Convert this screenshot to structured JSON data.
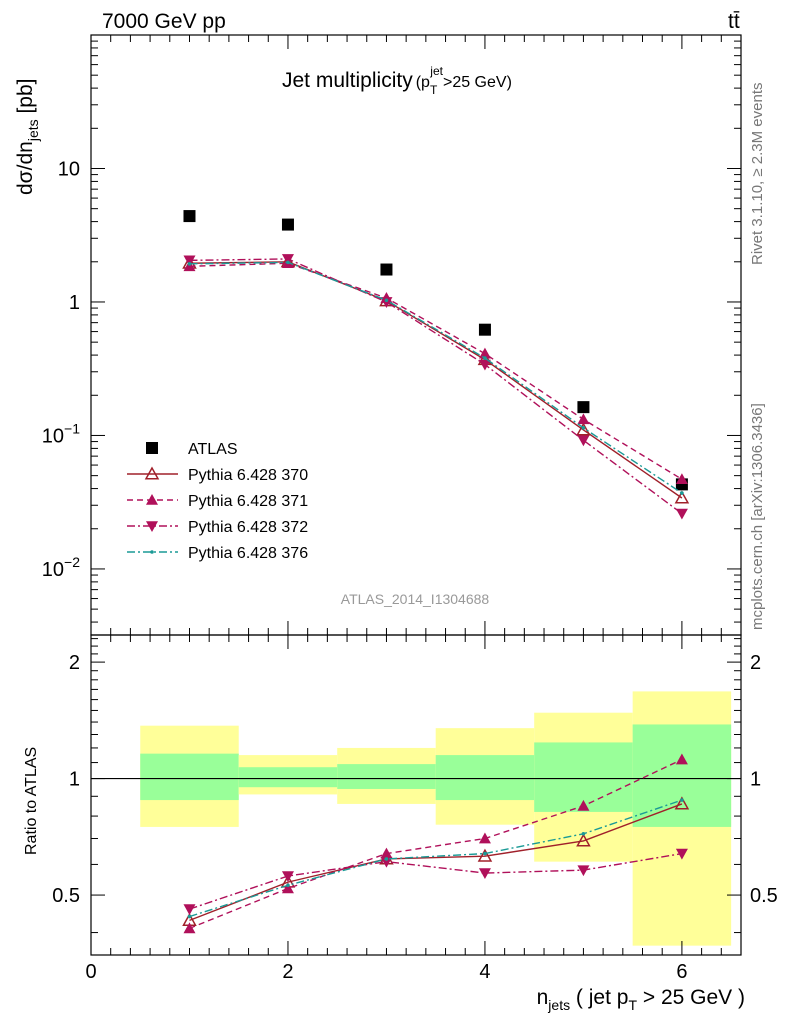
{
  "header": {
    "energy_label": "7000 GeV pp",
    "process_label": "tt̄",
    "side_rivet": "Rivet 3.1.10, ≥ 2.3M events",
    "side_mcplots": "mcplots.cern.ch [arXiv:1306.3436]",
    "analysis_id": "ATLAS_2014_I1304688"
  },
  "chart_data": [
    {
      "type": "scatter",
      "panel": "main",
      "title": "Jet multiplicity (p_T^jet > 25 GeV)",
      "title_main": "Jet multiplicity",
      "title_sub_p": "(p",
      "title_sub_T": "T",
      "title_sup_jet": "jet",
      "title_sub_rest": ">25 GeV)",
      "ylabel_main": "dσ/dn",
      "ylabel_sub": "jets",
      "ylabel_unit": " [pb]",
      "yscale": "log",
      "ylim": [
        0.0032,
        100
      ],
      "xlim": [
        0,
        6.6
      ],
      "y_tick_labels": [
        {
          "value": 10,
          "base": "10",
          "exp": ""
        },
        {
          "value": 1,
          "base": "1",
          "exp": ""
        },
        {
          "value": 0.1,
          "base": "10",
          "exp": "−1"
        },
        {
          "value": 0.01,
          "base": "10",
          "exp": "−2"
        }
      ],
      "x": [
        1,
        2,
        3,
        4,
        5,
        6
      ],
      "series": [
        {
          "name": "ATLAS",
          "values": [
            4.4,
            3.8,
            1.75,
            0.62,
            0.163,
            0.043
          ],
          "color": "#000000",
          "marker": "square",
          "line": "none"
        },
        {
          "name": "Pythia 6.428 370",
          "values": [
            1.95,
            2.0,
            1.02,
            0.37,
            0.11,
            0.034
          ],
          "color": "#a0202a",
          "marker": "triangle-open",
          "line": "solid"
        },
        {
          "name": "Pythia 6.428 371",
          "values": [
            1.85,
            1.95,
            1.07,
            0.41,
            0.132,
            0.047
          ],
          "color": "#b0105a",
          "marker": "triangle-up",
          "line": "dashed"
        },
        {
          "name": "Pythia 6.428 372",
          "values": [
            2.05,
            2.1,
            1.0,
            0.34,
            0.092,
            0.026
          ],
          "color": "#b0105a",
          "marker": "triangle-down",
          "line": "dashdot"
        },
        {
          "name": "Pythia 6.428 376",
          "values": [
            1.93,
            1.98,
            1.03,
            0.38,
            0.114,
            0.037
          ],
          "color": "#1a9a96",
          "marker": "dot",
          "line": "dashdot"
        }
      ]
    },
    {
      "type": "line",
      "panel": "ratio",
      "ylabel": "Ratio to ATLAS",
      "ylim": [
        0.35,
        2.35
      ],
      "y_tick_labels": [
        "0.5",
        "1",
        "2"
      ],
      "y_tick_values": [
        0.5,
        1,
        2
      ],
      "xlabel_n": "n",
      "xlabel_sub": "jets",
      "xlabel_mid": " ( jet p",
      "xlabel_subT": "T",
      "xlabel_end": " > 25 GeV )",
      "x_tick_labels": [
        "0",
        "2",
        "4",
        "6"
      ],
      "x_tick_values": [
        0,
        2,
        4,
        6
      ],
      "xlim": [
        0,
        6.6
      ],
      "bands": [
        {
          "x0": 0.5,
          "x1": 1.5,
          "yellow": [
            0.75,
            1.37
          ],
          "green": [
            0.88,
            1.16
          ]
        },
        {
          "x0": 1.5,
          "x1": 2.5,
          "yellow": [
            0.91,
            1.15
          ],
          "green": [
            0.95,
            1.07
          ]
        },
        {
          "x0": 2.5,
          "x1": 3.5,
          "yellow": [
            0.86,
            1.2
          ],
          "green": [
            0.94,
            1.09
          ]
        },
        {
          "x0": 3.5,
          "x1": 4.5,
          "yellow": [
            0.76,
            1.35
          ],
          "green": [
            0.88,
            1.15
          ]
        },
        {
          "x0": 4.5,
          "x1": 5.5,
          "yellow": [
            0.61,
            1.48
          ],
          "green": [
            0.82,
            1.24
          ]
        },
        {
          "x0": 5.5,
          "x1": 6.5,
          "yellow": [
            0.37,
            1.68
          ],
          "green": [
            0.75,
            1.38
          ]
        }
      ],
      "series": [
        {
          "name": "Pythia 6.428 370",
          "values": [
            0.43,
            0.54,
            0.62,
            0.63,
            0.69,
            0.86
          ]
        },
        {
          "name": "Pythia 6.428 371",
          "values": [
            0.41,
            0.52,
            0.64,
            0.7,
            0.85,
            1.12
          ]
        },
        {
          "name": "Pythia 6.428 372",
          "values": [
            0.46,
            0.56,
            0.61,
            0.57,
            0.58,
            0.64
          ]
        },
        {
          "name": "Pythia 6.428 376",
          "values": [
            0.44,
            0.53,
            0.62,
            0.64,
            0.72,
            0.88
          ]
        }
      ]
    }
  ]
}
